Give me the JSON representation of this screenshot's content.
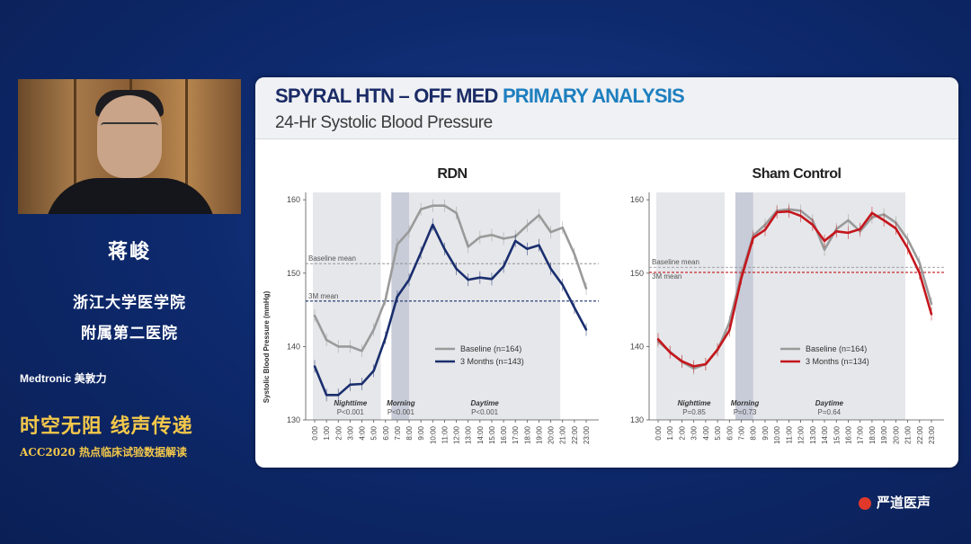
{
  "speaker": {
    "name": "蒋峻",
    "affiliation_1": "浙江大学医学院",
    "affiliation_2": "附属第二医院",
    "sponsor": "Medtronic 美敦力",
    "slogan": "时空无阻 线声传递",
    "event": "ACC2020 热点临床试验数据解读"
  },
  "slide": {
    "title_part1": "SPYRAL HTN – OFF MED",
    "title_part2": "PRIMARY ANALYSIS",
    "subtitle": "24-Hr Systolic Blood Pressure",
    "ylabel": "Systolic Blood Pressure (mmHg)"
  },
  "logo": {
    "text": "严道医声"
  },
  "colors": {
    "baseline": "#9a9a9a",
    "rdn_3m": "#1a2e6e",
    "sham_3m": "#c4161c",
    "night_shade": "#e6e7ea",
    "morning_shade": "#c8ccd8"
  },
  "chart_data": [
    {
      "type": "line",
      "title": "RDN",
      "ylim": [
        130,
        161
      ],
      "yticks": [
        130,
        140,
        150,
        160
      ],
      "x": [
        "0:00",
        "1:00",
        "2:00",
        "3:00",
        "4:00",
        "5:00",
        "6:00",
        "7:00",
        "8:00",
        "9:00",
        "10:00",
        "11:00",
        "12:00",
        "13:00",
        "14:00",
        "15:00",
        "16:00",
        "17:00",
        "18:00",
        "19:00",
        "20:00",
        "21:00",
        "22:00",
        "23:00"
      ],
      "series": [
        {
          "name": "Baseline (n=164)",
          "values": [
            144.2,
            140.9,
            140.0,
            140.0,
            139.4,
            142.3,
            146.4,
            153.9,
            155.7,
            158.7,
            159.2,
            159.2,
            158.2,
            153.6,
            154.9,
            155.2,
            154.7,
            155.0,
            156.5,
            157.9,
            155.6,
            156.2,
            152.6,
            147.9
          ]
        },
        {
          "name": "3 Months (n=143)",
          "values": [
            137.3,
            133.4,
            133.4,
            134.8,
            134.9,
            136.7,
            141.2,
            146.8,
            149.1,
            152.8,
            156.6,
            153.3,
            150.6,
            149.1,
            149.4,
            149.2,
            150.9,
            154.4,
            153.3,
            153.8,
            150.6,
            148.4,
            145.3,
            142.3
          ]
        }
      ],
      "reference_lines": [
        {
          "label": "Baseline mean",
          "value": 151.3
        },
        {
          "label": "3M mean",
          "value": 146.2
        }
      ],
      "periods": [
        {
          "label": "Nighttime",
          "p_value": "P<0.001"
        },
        {
          "label": "Morning",
          "p_value": "P<0.001"
        },
        {
          "label": "Daytime",
          "p_value": "P<0.001"
        }
      ],
      "grid": false,
      "legend_position": "bottom-right"
    },
    {
      "type": "line",
      "title": "Sham Control",
      "ylim": [
        130,
        161
      ],
      "yticks": [
        130,
        140,
        150,
        160
      ],
      "x": [
        "0:00",
        "1:00",
        "2:00",
        "3:00",
        "4:00",
        "5:00",
        "6:00",
        "7:00",
        "8:00",
        "9:00",
        "10:00",
        "11:00",
        "12:00",
        "13:00",
        "14:00",
        "15:00",
        "16:00",
        "17:00",
        "18:00",
        "19:00",
        "20:00",
        "21:00",
        "22:00",
        "23:00"
      ],
      "series": [
        {
          "name": "Baseline (n=164)",
          "values": [
            140.7,
            139.3,
            137.9,
            137.0,
            137.6,
            139.5,
            143.3,
            149.8,
            155.1,
            156.6,
            158.5,
            158.7,
            158.5,
            157.2,
            153.2,
            156.0,
            157.2,
            155.7,
            157.6,
            158.0,
            156.9,
            154.6,
            151.4,
            145.8
          ]
        },
        {
          "name": "3 Months (n=134)",
          "values": [
            141.0,
            139.2,
            138.0,
            137.3,
            137.6,
            139.6,
            142.2,
            149.3,
            154.8,
            155.9,
            158.3,
            158.4,
            157.8,
            156.6,
            154.4,
            155.7,
            155.5,
            156.0,
            158.2,
            157.2,
            156.1,
            153.4,
            150.0,
            144.4
          ]
        }
      ],
      "reference_lines": [
        {
          "label": "Baseline mean",
          "value": 150.8
        },
        {
          "label": "3M mean",
          "value": 150.1
        }
      ],
      "periods": [
        {
          "label": "Nighttime",
          "p_value": "P=0.85"
        },
        {
          "label": "Morning",
          "p_value": "P=0.73"
        },
        {
          "label": "Daytime",
          "p_value": "P=0.64"
        }
      ],
      "grid": false,
      "legend_position": "bottom-right"
    }
  ]
}
